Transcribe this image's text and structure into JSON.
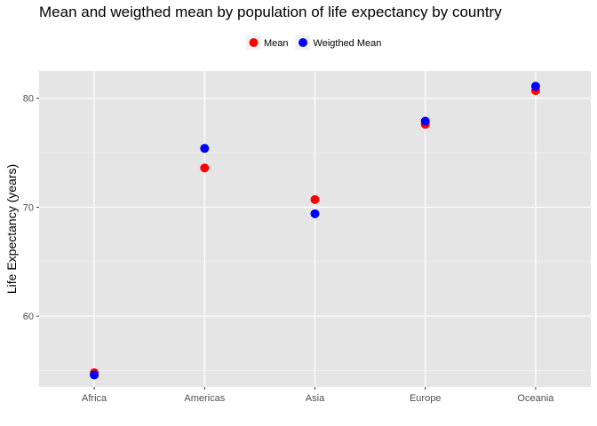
{
  "chart_data": {
    "type": "scatter",
    "title": "Mean and weigthed mean by population of life expectancy by country",
    "xlabel": "",
    "ylabel": "Life Expectancy (years)",
    "categories": [
      "Africa",
      "Americas",
      "Asia",
      "Europe",
      "Oceania"
    ],
    "ylim": [
      53.5,
      82.5
    ],
    "yticks": [
      60,
      70,
      80
    ],
    "grid": true,
    "legend_position": "top",
    "series": [
      {
        "name": "Mean",
        "color": "#ff0000",
        "values": [
          54.8,
          73.6,
          70.7,
          77.6,
          80.7
        ]
      },
      {
        "name": "Weigthed Mean",
        "color": "#0000ff",
        "values": [
          54.6,
          75.4,
          69.4,
          77.9,
          81.1
        ]
      }
    ]
  }
}
